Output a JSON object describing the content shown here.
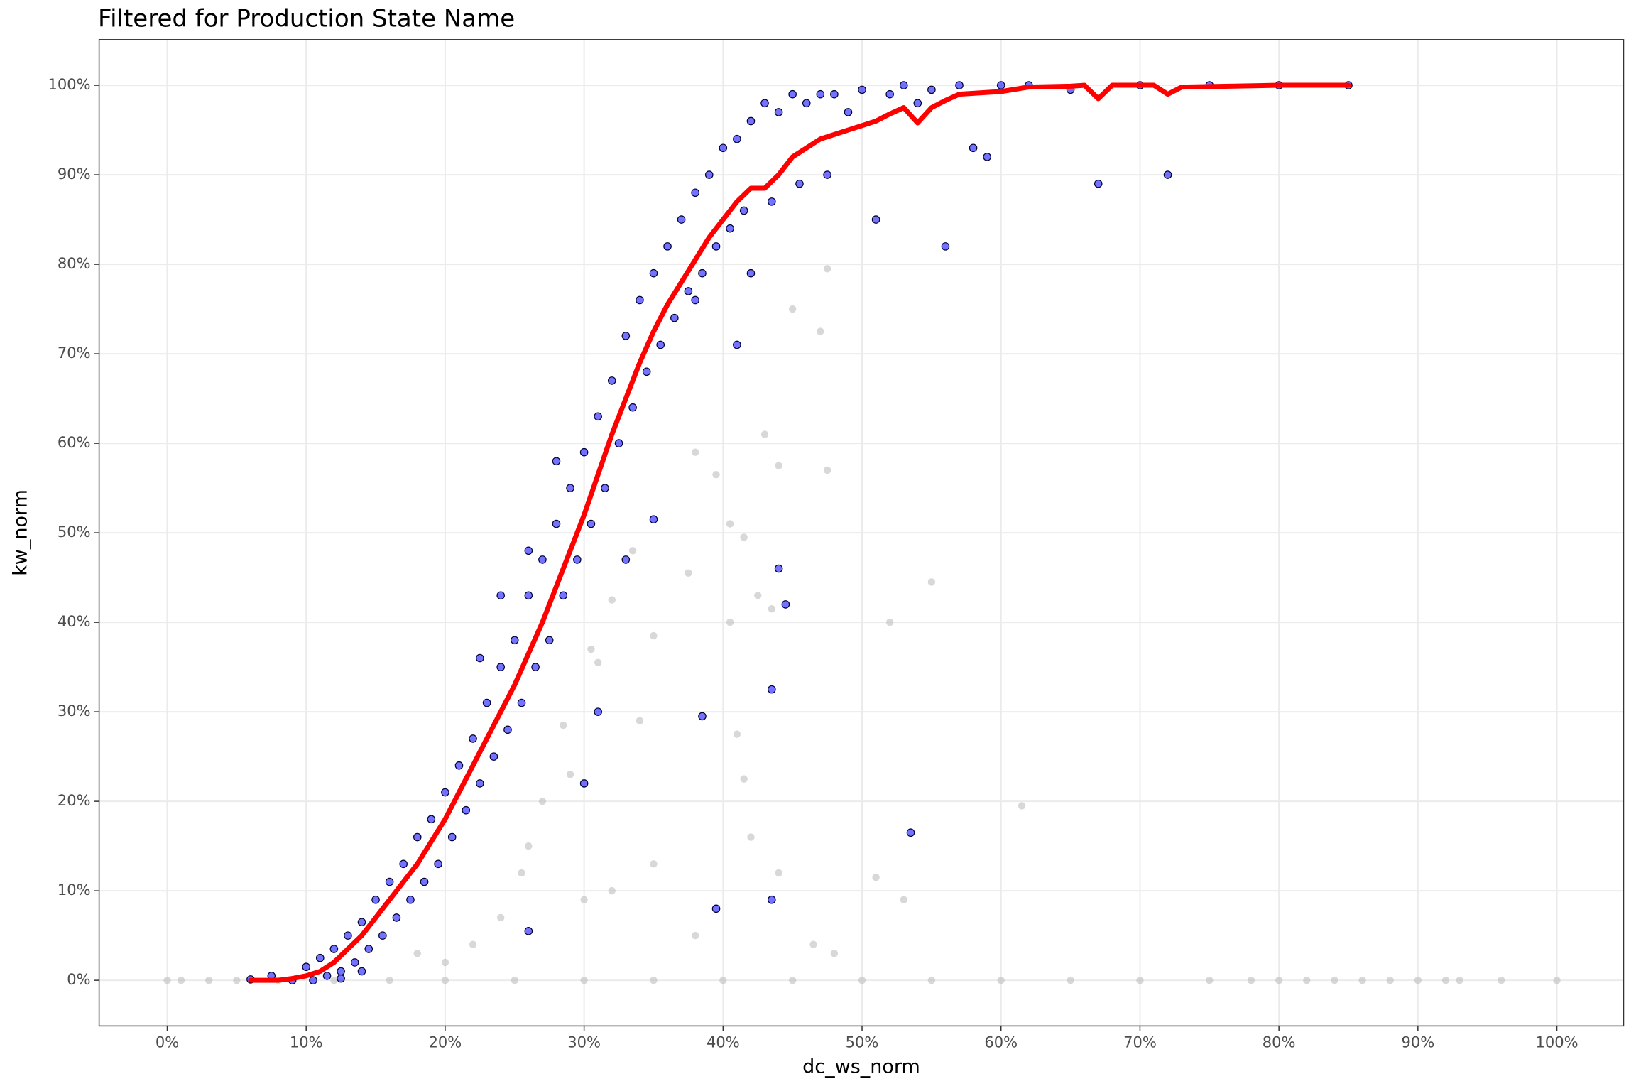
{
  "chart_data": {
    "type": "scatter",
    "title": "Filtered for Production State Name",
    "x_label": "dc_ws_norm",
    "y_label": "kw_norm",
    "grid": true,
    "xlim": [
      -4.9,
      104.8
    ],
    "ylim": [
      -5.1,
      105.1
    ],
    "xticks": [
      {
        "value": 0,
        "label": "0%"
      },
      {
        "value": 10,
        "label": "10%"
      },
      {
        "value": 20,
        "label": "20%"
      },
      {
        "value": 30,
        "label": "30%"
      },
      {
        "value": 40,
        "label": "40%"
      },
      {
        "value": 50,
        "label": "50%"
      },
      {
        "value": 60,
        "label": "60%"
      },
      {
        "value": 70,
        "label": "70%"
      },
      {
        "value": 80,
        "label": "80%"
      },
      {
        "value": 90,
        "label": "90%"
      },
      {
        "value": 100,
        "label": "100%"
      }
    ],
    "yticks": [
      {
        "value": 0,
        "label": "0%"
      },
      {
        "value": 10,
        "label": "10%"
      },
      {
        "value": 20,
        "label": "20%"
      },
      {
        "value": 30,
        "label": "30%"
      },
      {
        "value": 40,
        "label": "40%"
      },
      {
        "value": 50,
        "label": "50%"
      },
      {
        "value": 60,
        "label": "60%"
      },
      {
        "value": 70,
        "label": "70%"
      },
      {
        "value": 80,
        "label": "80%"
      },
      {
        "value": 90,
        "label": "90%"
      },
      {
        "value": 100,
        "label": "100%"
      }
    ],
    "series": [
      {
        "kind": "scatter",
        "color": "#bebebe",
        "x": [
          0,
          1,
          3,
          5,
          8,
          12,
          16,
          20,
          25,
          30,
          35,
          40,
          45,
          50,
          55,
          60,
          65,
          70,
          75,
          78,
          80,
          82,
          84,
          86,
          88,
          90,
          92,
          93,
          96,
          100,
          38,
          39.5,
          40.5,
          41.5,
          43,
          44,
          47.5,
          47.5,
          45,
          47,
          40.5,
          42.5,
          43.5,
          35,
          37.5,
          33.5,
          32,
          30.5,
          31,
          34,
          28.5,
          29,
          27,
          26,
          25.5,
          30,
          32,
          35,
          38,
          42,
          44,
          46.5,
          48,
          52,
          55,
          61.5,
          51,
          53,
          41,
          41.5,
          24,
          22,
          20,
          18
        ],
        "values": [
          0,
          0,
          0,
          0,
          0,
          0,
          0,
          0,
          0,
          0,
          0,
          0,
          0,
          0,
          0,
          0,
          0,
          0,
          0,
          0,
          0,
          0,
          0,
          0,
          0,
          0,
          0,
          0,
          0,
          0,
          59,
          56.5,
          51,
          49.5,
          61,
          57.5,
          57,
          79.5,
          75,
          72.5,
          40,
          43,
          41.5,
          38.5,
          45.5,
          48,
          42.5,
          37,
          35.5,
          29,
          28.5,
          23,
          20,
          15,
          12,
          9,
          10,
          13,
          5,
          16,
          12,
          4,
          3,
          40,
          44.5,
          19.5,
          11.5,
          9,
          27.5,
          22.5,
          7,
          4,
          2,
          3
        ]
      },
      {
        "kind": "scatter",
        "color": "#0000ff",
        "x": [
          6,
          7.5,
          9,
          10,
          10.5,
          11,
          11.5,
          12,
          12.5,
          13,
          13.5,
          14,
          14.5,
          15,
          15.5,
          16,
          16.5,
          17,
          17.5,
          18,
          18.5,
          19,
          19.5,
          20,
          20.5,
          21,
          21.5,
          22,
          22.5,
          23,
          23.5,
          24,
          24.5,
          25,
          25.5,
          26,
          26.5,
          27,
          27.5,
          28,
          28.5,
          29,
          29.5,
          30,
          30.5,
          31,
          31.5,
          32,
          32.5,
          33,
          33.5,
          34,
          34.5,
          35,
          35.5,
          36,
          36.5,
          37,
          37.5,
          38,
          38.5,
          39,
          39.5,
          40,
          40.5,
          41,
          41.5,
          42,
          43,
          43.5,
          44,
          45,
          45.5,
          46,
          47,
          47.5,
          48,
          49,
          50,
          51,
          52,
          53,
          54,
          55,
          56,
          57,
          58,
          59,
          60,
          62,
          65,
          67,
          70,
          72,
          75,
          80,
          85,
          22.5,
          24,
          26,
          28,
          30,
          31,
          33,
          35,
          38.5,
          39.5,
          43.5,
          43.5,
          44,
          44.5,
          53.5,
          26,
          14,
          12.5,
          38,
          42,
          41
        ],
        "values": [
          0.1,
          0.5,
          0,
          1.5,
          0,
          2.5,
          0.5,
          3.5,
          1,
          5,
          2,
          6.5,
          3.5,
          9,
          5,
          11,
          7,
          13,
          9,
          16,
          11,
          18,
          13,
          21,
          16,
          24,
          19,
          27,
          22,
          31,
          25,
          35,
          28,
          38,
          31,
          43,
          35,
          47,
          38,
          51,
          43,
          55,
          47,
          59,
          51,
          63,
          55,
          67,
          60,
          72,
          64,
          76,
          68,
          79,
          71,
          82,
          74,
          85,
          77,
          88,
          79,
          90,
          82,
          93,
          84,
          94,
          86,
          96,
          98,
          87,
          97,
          99,
          89,
          98,
          99,
          90,
          99,
          97,
          99.5,
          85,
          99,
          100,
          98,
          99.5,
          82,
          100,
          93,
          92,
          100,
          100,
          99.5,
          89,
          100,
          90,
          100,
          100,
          100,
          36,
          43,
          48,
          58,
          22,
          30,
          47,
          51.5,
          29.5,
          8,
          32.5,
          9,
          46,
          42,
          16.5,
          5.5,
          1,
          0.2,
          76,
          79,
          71
        ]
      },
      {
        "kind": "line",
        "color": "#ff0000",
        "x": [
          6,
          8,
          9,
          10,
          11,
          12,
          13,
          14,
          15,
          16,
          17,
          18,
          19,
          20,
          21,
          22,
          23,
          24,
          25,
          26,
          27,
          28,
          29,
          30,
          31,
          32,
          33,
          34,
          35,
          36,
          37,
          38,
          39,
          40,
          41,
          42,
          43,
          44,
          45,
          46,
          47,
          48,
          49,
          50,
          51,
          52,
          53,
          54,
          55,
          56,
          57,
          60,
          62,
          65,
          66,
          67,
          68,
          71,
          72,
          73,
          80,
          85
        ],
        "values": [
          0,
          0,
          0.2,
          0.5,
          1,
          2,
          3.5,
          5,
          7,
          9,
          11,
          13,
          15.5,
          18,
          21,
          24,
          27,
          30,
          33,
          36.5,
          40,
          44,
          48,
          52,
          56.5,
          61,
          65,
          69,
          72.5,
          75.5,
          78,
          80.5,
          83,
          85,
          87,
          88.5,
          88.5,
          90,
          92,
          93,
          94,
          94.5,
          95,
          95.5,
          96,
          96.8,
          97.5,
          95.8,
          97.5,
          98.3,
          99,
          99.3,
          99.8,
          99.9,
          100,
          98.5,
          100,
          100,
          99,
          99.8,
          100,
          100
        ]
      }
    ]
  }
}
